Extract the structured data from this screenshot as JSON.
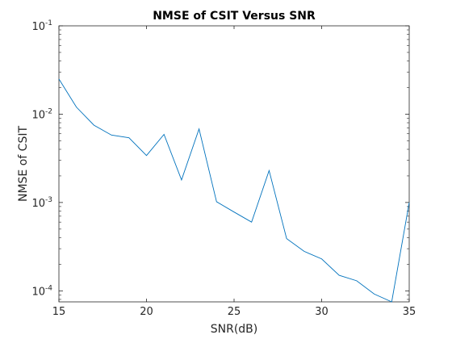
{
  "chart_data": {
    "type": "line",
    "title": "NMSE of CSIT Versus SNR",
    "xlabel": "SNR(dB)",
    "ylabel": "NMSE of CSIT",
    "xlim": [
      15,
      35
    ],
    "ylim": [
      7.5e-05,
      0.1
    ],
    "yscale": "log",
    "grid": false,
    "x_ticks": [
      15,
      20,
      25,
      30,
      35
    ],
    "y_ticks": [
      {
        "value": 0.0001,
        "base": "10",
        "exp": "-4"
      },
      {
        "value": 0.001,
        "base": "10",
        "exp": "-3"
      },
      {
        "value": 0.01,
        "base": "10",
        "exp": "-2"
      },
      {
        "value": 0.1,
        "base": "10",
        "exp": "-1"
      }
    ],
    "series": [
      {
        "color": "#0072bd",
        "x": [
          15,
          16,
          17,
          18,
          19,
          20,
          21,
          22,
          23,
          24,
          25,
          26,
          27,
          28,
          29,
          30,
          31,
          32,
          33,
          34,
          35
        ],
        "y": [
          0.025,
          0.012,
          0.0075,
          0.0058,
          0.0054,
          0.0034,
          0.0059,
          0.0018,
          0.0068,
          0.00102,
          0.00078,
          0.0006,
          0.0023,
          0.00039,
          0.00028,
          0.00023,
          0.00015,
          0.00013,
          9.2e-05,
          7.5e-05,
          0.001
        ]
      }
    ]
  }
}
